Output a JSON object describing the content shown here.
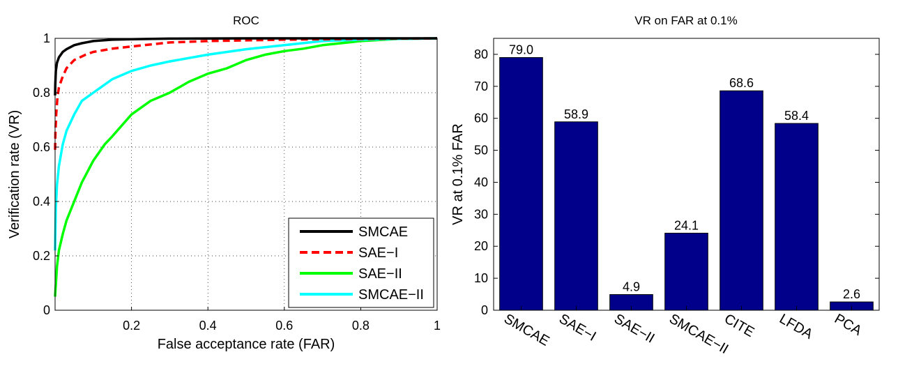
{
  "chart_data": [
    {
      "type": "line",
      "title": "ROC",
      "xlabel": "False acceptance rate (FAR)",
      "ylabel": "Verification rate (VR)",
      "xlim": [
        0,
        1
      ],
      "ylim": [
        0,
        1
      ],
      "xticks": [
        "0.2",
        "0.4",
        "0.6",
        "0.8",
        "1"
      ],
      "xtick_values": [
        0.2,
        0.4,
        0.6,
        0.8,
        1.0
      ],
      "yticks": [
        "0",
        "0.2",
        "0.4",
        "0.6",
        "0.8",
        "1"
      ],
      "ytick_values": [
        0,
        0.2,
        0.4,
        0.6,
        0.8,
        1.0
      ],
      "grid": true,
      "legend_position": "bottom-right",
      "series": [
        {
          "name": "SMCAE",
          "color": "#000000",
          "dash": "solid",
          "x": [
            0,
            0.0005,
            0.002,
            0.005,
            0.01,
            0.02,
            0.03,
            0.05,
            0.07,
            0.1,
            0.15,
            0.2,
            0.3,
            0.5,
            1.0
          ],
          "y": [
            0.79,
            0.83,
            0.88,
            0.91,
            0.93,
            0.95,
            0.96,
            0.975,
            0.982,
            0.99,
            0.995,
            0.997,
            0.999,
            1.0,
            1.0
          ]
        },
        {
          "name": "SAE-I",
          "color": "#ff0000",
          "dash": "dashed",
          "x": [
            0,
            0.001,
            0.003,
            0.006,
            0.01,
            0.02,
            0.03,
            0.05,
            0.08,
            0.1,
            0.15,
            0.2,
            0.3,
            0.4,
            0.6,
            0.8,
            1.0
          ],
          "y": [
            0.59,
            0.65,
            0.72,
            0.78,
            0.82,
            0.86,
            0.89,
            0.92,
            0.94,
            0.95,
            0.962,
            0.97,
            0.985,
            0.99,
            0.995,
            0.998,
            1.0
          ]
        },
        {
          "name": "SAE-II",
          "color": "#00ff00",
          "dash": "solid",
          "x": [
            0,
            0.005,
            0.01,
            0.02,
            0.03,
            0.05,
            0.07,
            0.1,
            0.13,
            0.15,
            0.2,
            0.25,
            0.3,
            0.35,
            0.4,
            0.45,
            0.5,
            0.55,
            0.6,
            0.65,
            0.7,
            0.8,
            0.9,
            1.0
          ],
          "y": [
            0.05,
            0.16,
            0.22,
            0.28,
            0.33,
            0.4,
            0.47,
            0.55,
            0.61,
            0.64,
            0.72,
            0.77,
            0.8,
            0.84,
            0.87,
            0.89,
            0.92,
            0.94,
            0.953,
            0.962,
            0.975,
            0.99,
            0.998,
            1.0
          ]
        },
        {
          "name": "SMCAE-II",
          "color": "#00ffff",
          "dash": "solid",
          "x": [
            0,
            0.002,
            0.005,
            0.01,
            0.02,
            0.03,
            0.05,
            0.07,
            0.1,
            0.15,
            0.2,
            0.25,
            0.3,
            0.4,
            0.5,
            0.6,
            0.7,
            0.8,
            0.9,
            1.0
          ],
          "y": [
            0.22,
            0.38,
            0.46,
            0.53,
            0.61,
            0.66,
            0.72,
            0.77,
            0.8,
            0.85,
            0.88,
            0.9,
            0.915,
            0.94,
            0.96,
            0.975,
            0.99,
            0.995,
            0.998,
            1.0
          ]
        }
      ]
    },
    {
      "type": "bar",
      "title": "VR on FAR at 0.1%",
      "xlabel": "",
      "ylabel": "VR at 0.1% FAR",
      "ylim": [
        0,
        85
      ],
      "yticks": [
        "0",
        "10",
        "20",
        "30",
        "40",
        "50",
        "60",
        "70",
        "80"
      ],
      "ytick_values": [
        0,
        10,
        20,
        30,
        40,
        50,
        60,
        70,
        80
      ],
      "categories": [
        "SMCAE",
        "SAE−I",
        "SAE−II",
        "SMCAE−II",
        "CITE",
        "LFDA",
        "PCA"
      ],
      "values": [
        79.0,
        58.9,
        4.9,
        24.1,
        68.6,
        58.4,
        2.6
      ],
      "value_labels": [
        "79.0",
        "58.9",
        "4.9",
        "24.1",
        "68.6",
        "58.4",
        "2.6"
      ],
      "bar_color": "#00008b"
    }
  ]
}
